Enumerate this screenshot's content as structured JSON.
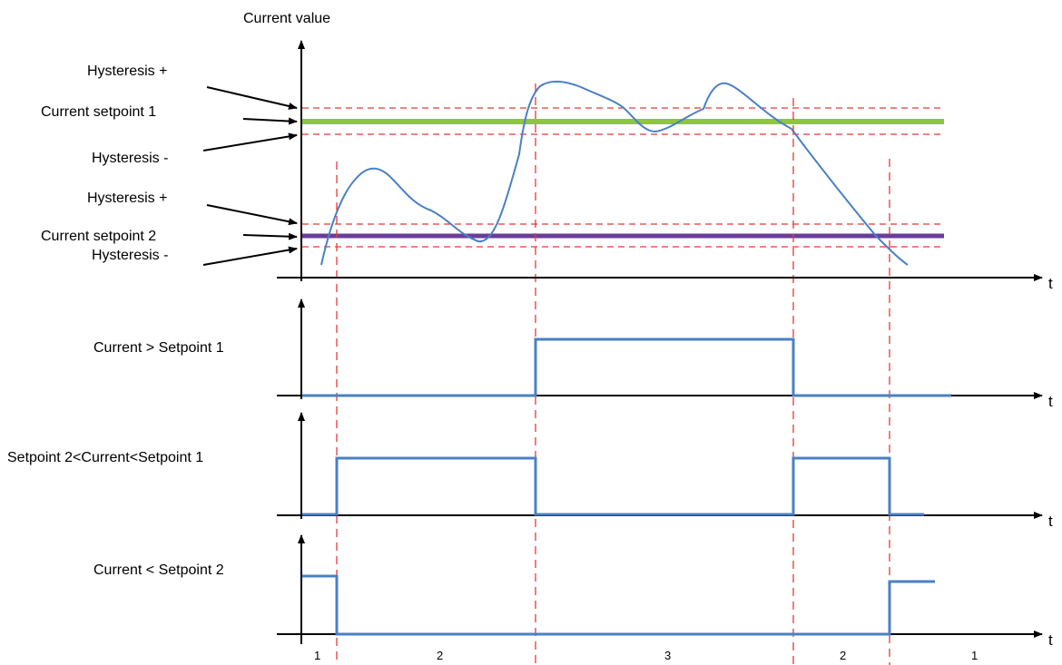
{
  "title": "Current value",
  "time_axis_label": "t",
  "labels": {
    "hyst_plus_1": "Hysteresis +",
    "setpoint_1": "Current setpoint 1",
    "hyst_minus_1": "Hysteresis -",
    "hyst_plus_2": "Hysteresis +",
    "setpoint_2": "Current setpoint 2",
    "hyst_minus_2": "Hysteresis -"
  },
  "signals": [
    {
      "label": "Current > Setpoint 1"
    },
    {
      "label": "Setpoint 2<Current<Setpoint 1"
    },
    {
      "label": "Current < Setpoint 2"
    }
  ],
  "zones": [
    "1",
    "2",
    "3",
    "2",
    "1"
  ],
  "colors": {
    "setpoint_1": "#8dc63f",
    "setpoint_2": "#6a3d9a",
    "signal": "#4a80c4",
    "hysteresis": "#e53935",
    "axis": "#000000"
  }
}
